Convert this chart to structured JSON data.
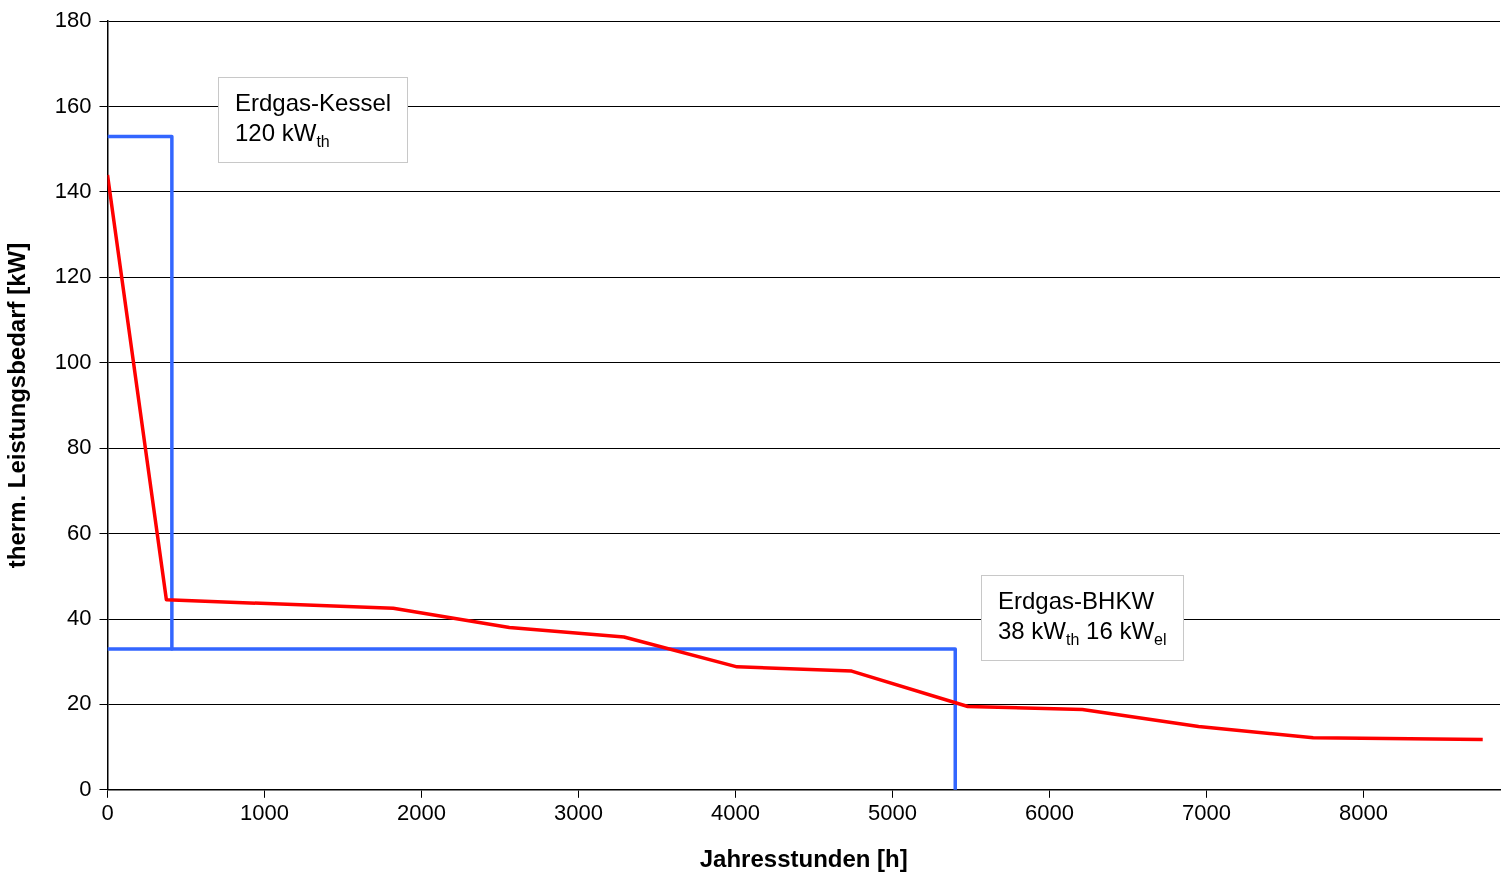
{
  "chart_data": {
    "type": "line",
    "xlabel": "Jahresstunden [h]",
    "ylabel": "therm. Leistungsbedarf [kW]",
    "xlim": [
      0,
      8870
    ],
    "xticks": [
      0,
      1000,
      2000,
      3000,
      4000,
      5000,
      6000,
      7000,
      8000
    ],
    "ylim": [
      0,
      180
    ],
    "yticks": [
      0,
      20,
      40,
      60,
      80,
      100,
      120,
      140,
      160,
      180
    ],
    "grid": "y",
    "legend": false,
    "marker": "none",
    "line_style": "solid",
    "series": [
      {
        "color": "#ff0000",
        "x": [
          0,
          375,
          1820,
          2560,
          3290,
          4010,
          4740,
          5480,
          6210,
          6950,
          7680,
          8760
        ],
        "values": [
          144,
          44.5,
          42.5,
          38,
          35.8,
          28.8,
          27.8,
          19.5,
          18.8,
          14.8,
          12.2,
          11.8
        ]
      },
      {
        "color": "#3366ff",
        "x": [
          0,
          410,
          410
        ],
        "values": [
          153,
          153,
          33
        ]
      },
      {
        "color": "#3366ff",
        "x": [
          0,
          5400,
          5400
        ],
        "values": [
          33,
          33,
          0
        ]
      }
    ],
    "annotations": [
      "Erdgas-Kessel\n120 kW$_{th}$",
      "Erdgas-BHKW\n38 kW$_{th}$ 16 kW$_{el}$"
    ]
  }
}
